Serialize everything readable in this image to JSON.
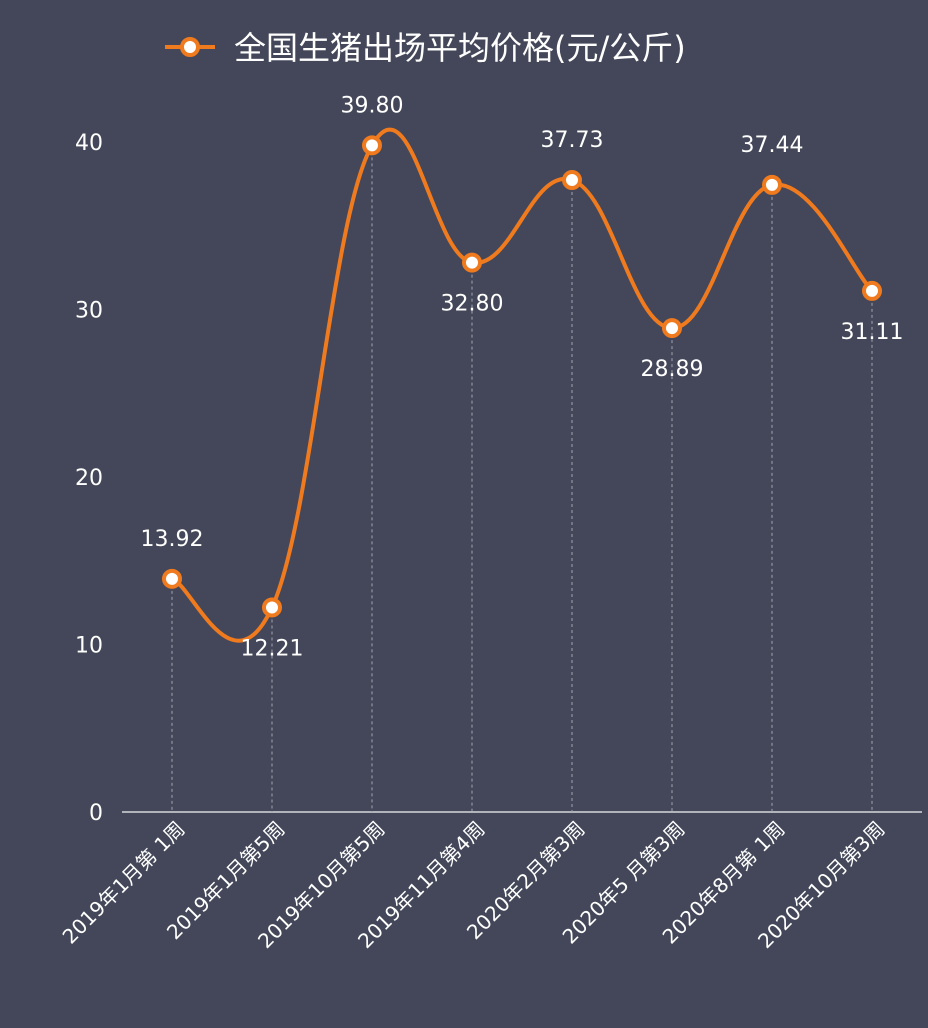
{
  "chart_data": {
    "type": "line",
    "title": "",
    "legend": {
      "label": "全国生猪出场平均价格(元/公斤)",
      "placement": "top-center"
    },
    "categories": [
      "2019年1月第 1周",
      "2019年1月第5周",
      "2019年10月第5周",
      "2019年11月第4周",
      "2020年2月第3周",
      "2020年5 月第3周",
      "2020年8月第 1周",
      "2020年10月第3周"
    ],
    "series": [
      {
        "name": "全国生猪出场平均价格(元/公斤)",
        "values": [
          13.92,
          12.21,
          39.8,
          32.8,
          37.73,
          28.89,
          37.44,
          31.11
        ]
      }
    ],
    "data_labels": [
      "13.92",
      "12.21",
      "39.80",
      "32.80",
      "37.73",
      "28.89",
      "37.44",
      "31.11"
    ],
    "yticks": [
      "0",
      "10",
      "20",
      "30",
      "40"
    ],
    "ylim": [
      0,
      40
    ],
    "xlabel": "",
    "ylabel": "",
    "grid": false,
    "smooth": true,
    "colors": {
      "background": "#434759",
      "line": "#f07a1e",
      "marker_fill": "#ffffff",
      "text": "#ffffff",
      "drop_lines": "#a0a3ad"
    }
  }
}
